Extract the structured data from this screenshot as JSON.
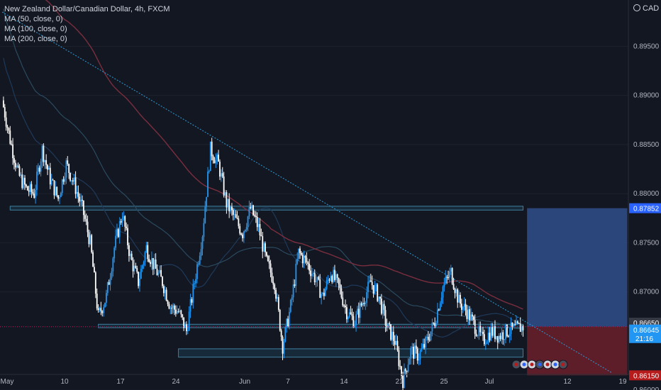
{
  "legend": {
    "title": "New Zealand Dollar/Canadian Dollar, 4h, FXCM",
    "ma1": "MA (50, close, 0)",
    "ma2": "MA (100, close, 0)",
    "ma3": "MA (200, close, 0)"
  },
  "currency_label": "CAD",
  "countdown": "21:16",
  "colors": {
    "background": "#131722",
    "up": "#2196f3",
    "down": "#ffffff",
    "ma50": "#1e3a5a",
    "ma100": "#2a4a5f",
    "ma200": "#7a2e3e",
    "trendline": "#2d9bd6",
    "zone_fill": "#1c3a4e",
    "zone_border": "#3f7fa0",
    "target": "#2f4f8a",
    "stop": "#6b1f2a",
    "price_line": "#c2185b"
  },
  "chart_data": {
    "type": "candlestick",
    "symbol": "NZDCAD",
    "timeframe": "4h",
    "ylim": [
      0.8595,
      0.899
    ],
    "y_ticks": [
      "0.89500",
      "0.89000",
      "0.88500",
      "0.88000",
      "0.87500",
      "0.87000",
      "0.86000"
    ],
    "x_ticks": [
      "May",
      "10",
      "17",
      "24",
      "Jun",
      "7",
      "14",
      "21",
      "25",
      "Jul",
      "12",
      "19"
    ],
    "current_price": 0.86645,
    "price_tags": [
      {
        "label": "0.87852",
        "value": 0.87852,
        "color": "#2962ff"
      },
      {
        "label": "0.86650",
        "value": 0.8665,
        "color": "#363a45"
      },
      {
        "label": "0.86645",
        "value": 0.86645,
        "color": "#2196f3"
      },
      {
        "label": "0.86150",
        "value": 0.8615,
        "color": "#b71c1c"
      }
    ],
    "support_zones": [
      {
        "from": 0.87833,
        "to": 0.87872,
        "start_day": 1,
        "end_day": 65
      },
      {
        "from": 0.86635,
        "to": 0.8667,
        "start_day": 12,
        "end_day": 65
      },
      {
        "from": 0.86335,
        "to": 0.8642,
        "start_day": 22,
        "end_day": 65
      }
    ],
    "trendline": {
      "start_day": 0,
      "start_value": 0.8985,
      "end_day": 76,
      "end_value": 0.8618
    },
    "risk_reward": {
      "start_day": 65.5,
      "end_day": 78,
      "entry": 0.86645,
      "target": 0.87852,
      "stop": 0.8615
    },
    "close_path": [
      [
        0,
        0.8895
      ],
      [
        1,
        0.8855
      ],
      [
        2,
        0.882
      ],
      [
        3,
        0.8805
      ],
      [
        4,
        0.88
      ],
      [
        5,
        0.8845
      ],
      [
        6,
        0.8815
      ],
      [
        7,
        0.8795
      ],
      [
        8,
        0.883
      ],
      [
        9,
        0.881
      ],
      [
        10,
        0.8785
      ],
      [
        11,
        0.875
      ],
      [
        12,
        0.8675
      ],
      [
        13,
        0.8695
      ],
      [
        14,
        0.8745
      ],
      [
        15,
        0.878
      ],
      [
        16,
        0.8735
      ],
      [
        17,
        0.871
      ],
      [
        18,
        0.8745
      ],
      [
        19,
        0.8725
      ],
      [
        20,
        0.871
      ],
      [
        21,
        0.8685
      ],
      [
        22,
        0.868
      ],
      [
        23,
        0.866
      ],
      [
        24,
        0.871
      ],
      [
        25,
        0.876
      ],
      [
        26,
        0.8845
      ],
      [
        27,
        0.883
      ],
      [
        28,
        0.879
      ],
      [
        29,
        0.8775
      ],
      [
        30,
        0.876
      ],
      [
        31,
        0.8785
      ],
      [
        32,
        0.8765
      ],
      [
        33,
        0.873
      ],
      [
        34,
        0.871
      ],
      [
        35,
        0.8645
      ],
      [
        36,
        0.8685
      ],
      [
        37,
        0.874
      ],
      [
        38,
        0.873
      ],
      [
        39,
        0.8715
      ],
      [
        40,
        0.8695
      ],
      [
        41,
        0.872
      ],
      [
        42,
        0.8705
      ],
      [
        43,
        0.868
      ],
      [
        44,
        0.867
      ],
      [
        45,
        0.869
      ],
      [
        46,
        0.871
      ],
      [
        47,
        0.8695
      ],
      [
        48,
        0.8665
      ],
      [
        49,
        0.865
      ],
      [
        50,
        0.861
      ],
      [
        51,
        0.864
      ],
      [
        52,
        0.8635
      ],
      [
        53,
        0.865
      ],
      [
        54,
        0.867
      ],
      [
        55,
        0.8705
      ],
      [
        56,
        0.872
      ],
      [
        57,
        0.869
      ],
      [
        58,
        0.868
      ],
      [
        59,
        0.8665
      ],
      [
        60,
        0.865
      ],
      [
        61,
        0.866
      ],
      [
        62,
        0.8655
      ],
      [
        63,
        0.866
      ],
      [
        64,
        0.8662
      ],
      [
        65,
        0.86645
      ]
    ]
  }
}
